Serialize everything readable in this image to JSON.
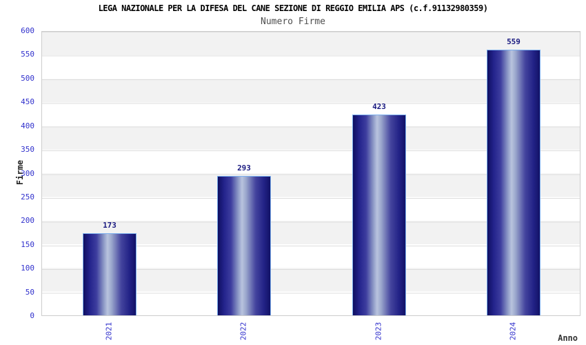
{
  "header": {
    "title": "LEGA NAZIONALE PER LA DIFESA DEL CANE SEZIONE DI REGGIO EMILIA APS (c.f.91132980359)",
    "subtitle": "Numero Firme"
  },
  "chart_data": {
    "type": "bar",
    "title": "LEGA NAZIONALE PER LA DIFESA DEL CANE SEZIONE DI REGGIO EMILIA APS (c.f.91132980359)",
    "subtitle": "Numero Firme",
    "categories": [
      "2021",
      "2022",
      "2023",
      "2024"
    ],
    "values": [
      173,
      293,
      423,
      559
    ],
    "xlabel": "Anno",
    "ylabel": "Firme",
    "ylim": [
      0,
      600
    ],
    "ytick_step": 50,
    "yticks": [
      0,
      50,
      100,
      150,
      200,
      250,
      300,
      350,
      400,
      450,
      500,
      550,
      600
    ],
    "grid": "alternating horizontal gray/white bands every 50 units with thin gridlines",
    "legend_position": "none",
    "bar_labels_shown": true,
    "x_labels_rotation_deg": 90,
    "colors": {
      "axis_label_blue": "#3030cc",
      "value_label_navy": "#191980",
      "bar_edge_navy": "#0f0f60",
      "bar_highlight": "#b9c4de",
      "bar_border": "#7aaeee",
      "band_gray": "#f2f2f2",
      "band_white": "#ffffff",
      "plot_border": "#cccccc",
      "title_color": "#000000",
      "subtitle_color": "#4d4d4d"
    }
  }
}
